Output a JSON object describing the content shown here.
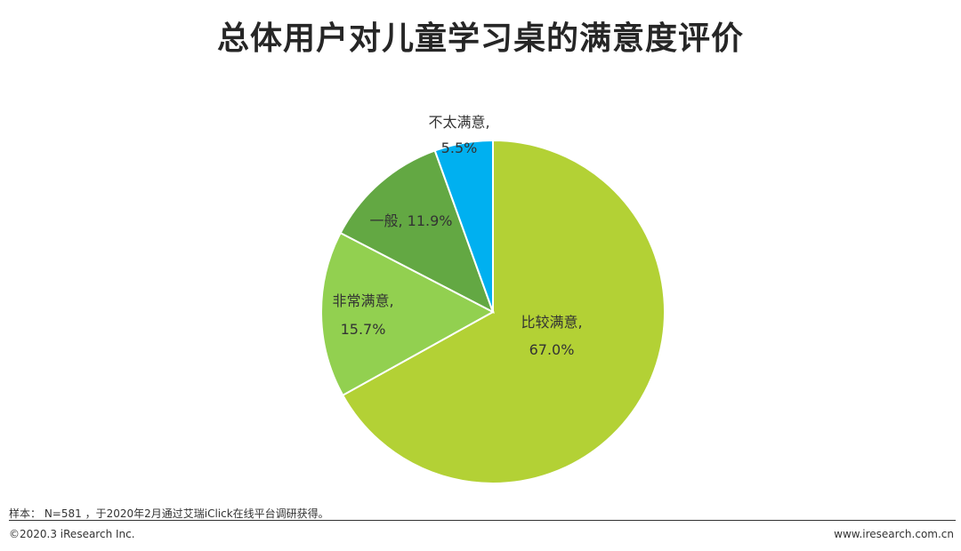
{
  "chart_data": {
    "type": "pie",
    "title": "总体用户对儿童学习桌的满意度评价",
    "slices": [
      {
        "label": "比较满意,",
        "value": 67.0,
        "value_text": "67.0%",
        "color": "#b3d135"
      },
      {
        "label": "非常满意,",
        "value": 15.7,
        "value_text": "15.7%",
        "color": "#92d050"
      },
      {
        "label": "一般,",
        "value": 11.9,
        "value_text": "11.9%",
        "color": "#63a843"
      },
      {
        "label": "不太满意,",
        "value": 5.5,
        "value_text": "5.5%",
        "color": "#00b0f0"
      }
    ],
    "start": "12 o'clock",
    "direction": "clockwise",
    "legend": "none"
  },
  "footer": {
    "note": "样本： N=581 ，于2020年2月通过艾瑞iClick在线平台调研获得。",
    "copyright": "©2020.3 iResearch Inc.",
    "website": "www.iresearch.com.cn"
  }
}
